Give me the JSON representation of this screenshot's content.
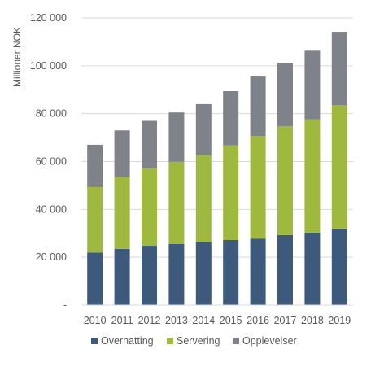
{
  "chart_data": {
    "type": "bar",
    "stacked": true,
    "title": "",
    "xlabel": "",
    "ylabel": "Millioner NOK",
    "ylim": [
      0,
      120000
    ],
    "ytick_values": [
      0,
      20000,
      40000,
      60000,
      80000,
      100000,
      120000
    ],
    "ytick_labels": [
      "-",
      "20 000",
      "40 000",
      "60 000",
      "80 000",
      "100 000",
      "120 000"
    ],
    "categories": [
      "2010",
      "2011",
      "2012",
      "2013",
      "2014",
      "2015",
      "2016",
      "2017",
      "2018",
      "2019"
    ],
    "series": [
      {
        "name": "Overnatting",
        "color": "#3d5a7c",
        "values": [
          22000,
          23500,
          24800,
          25500,
          26300,
          27200,
          27800,
          29300,
          30300,
          32000
        ]
      },
      {
        "name": "Servering",
        "color": "#9fb83e",
        "values": [
          27300,
          30000,
          32400,
          34400,
          36400,
          39500,
          42800,
          45500,
          47300,
          51500
        ]
      },
      {
        "name": "Opplevelser",
        "color": "#7f8288",
        "values": [
          17700,
          19500,
          19800,
          20600,
          21300,
          22700,
          24900,
          26500,
          28700,
          30700
        ]
      }
    ],
    "grid": "horizontal",
    "legend_position": "bottom"
  }
}
